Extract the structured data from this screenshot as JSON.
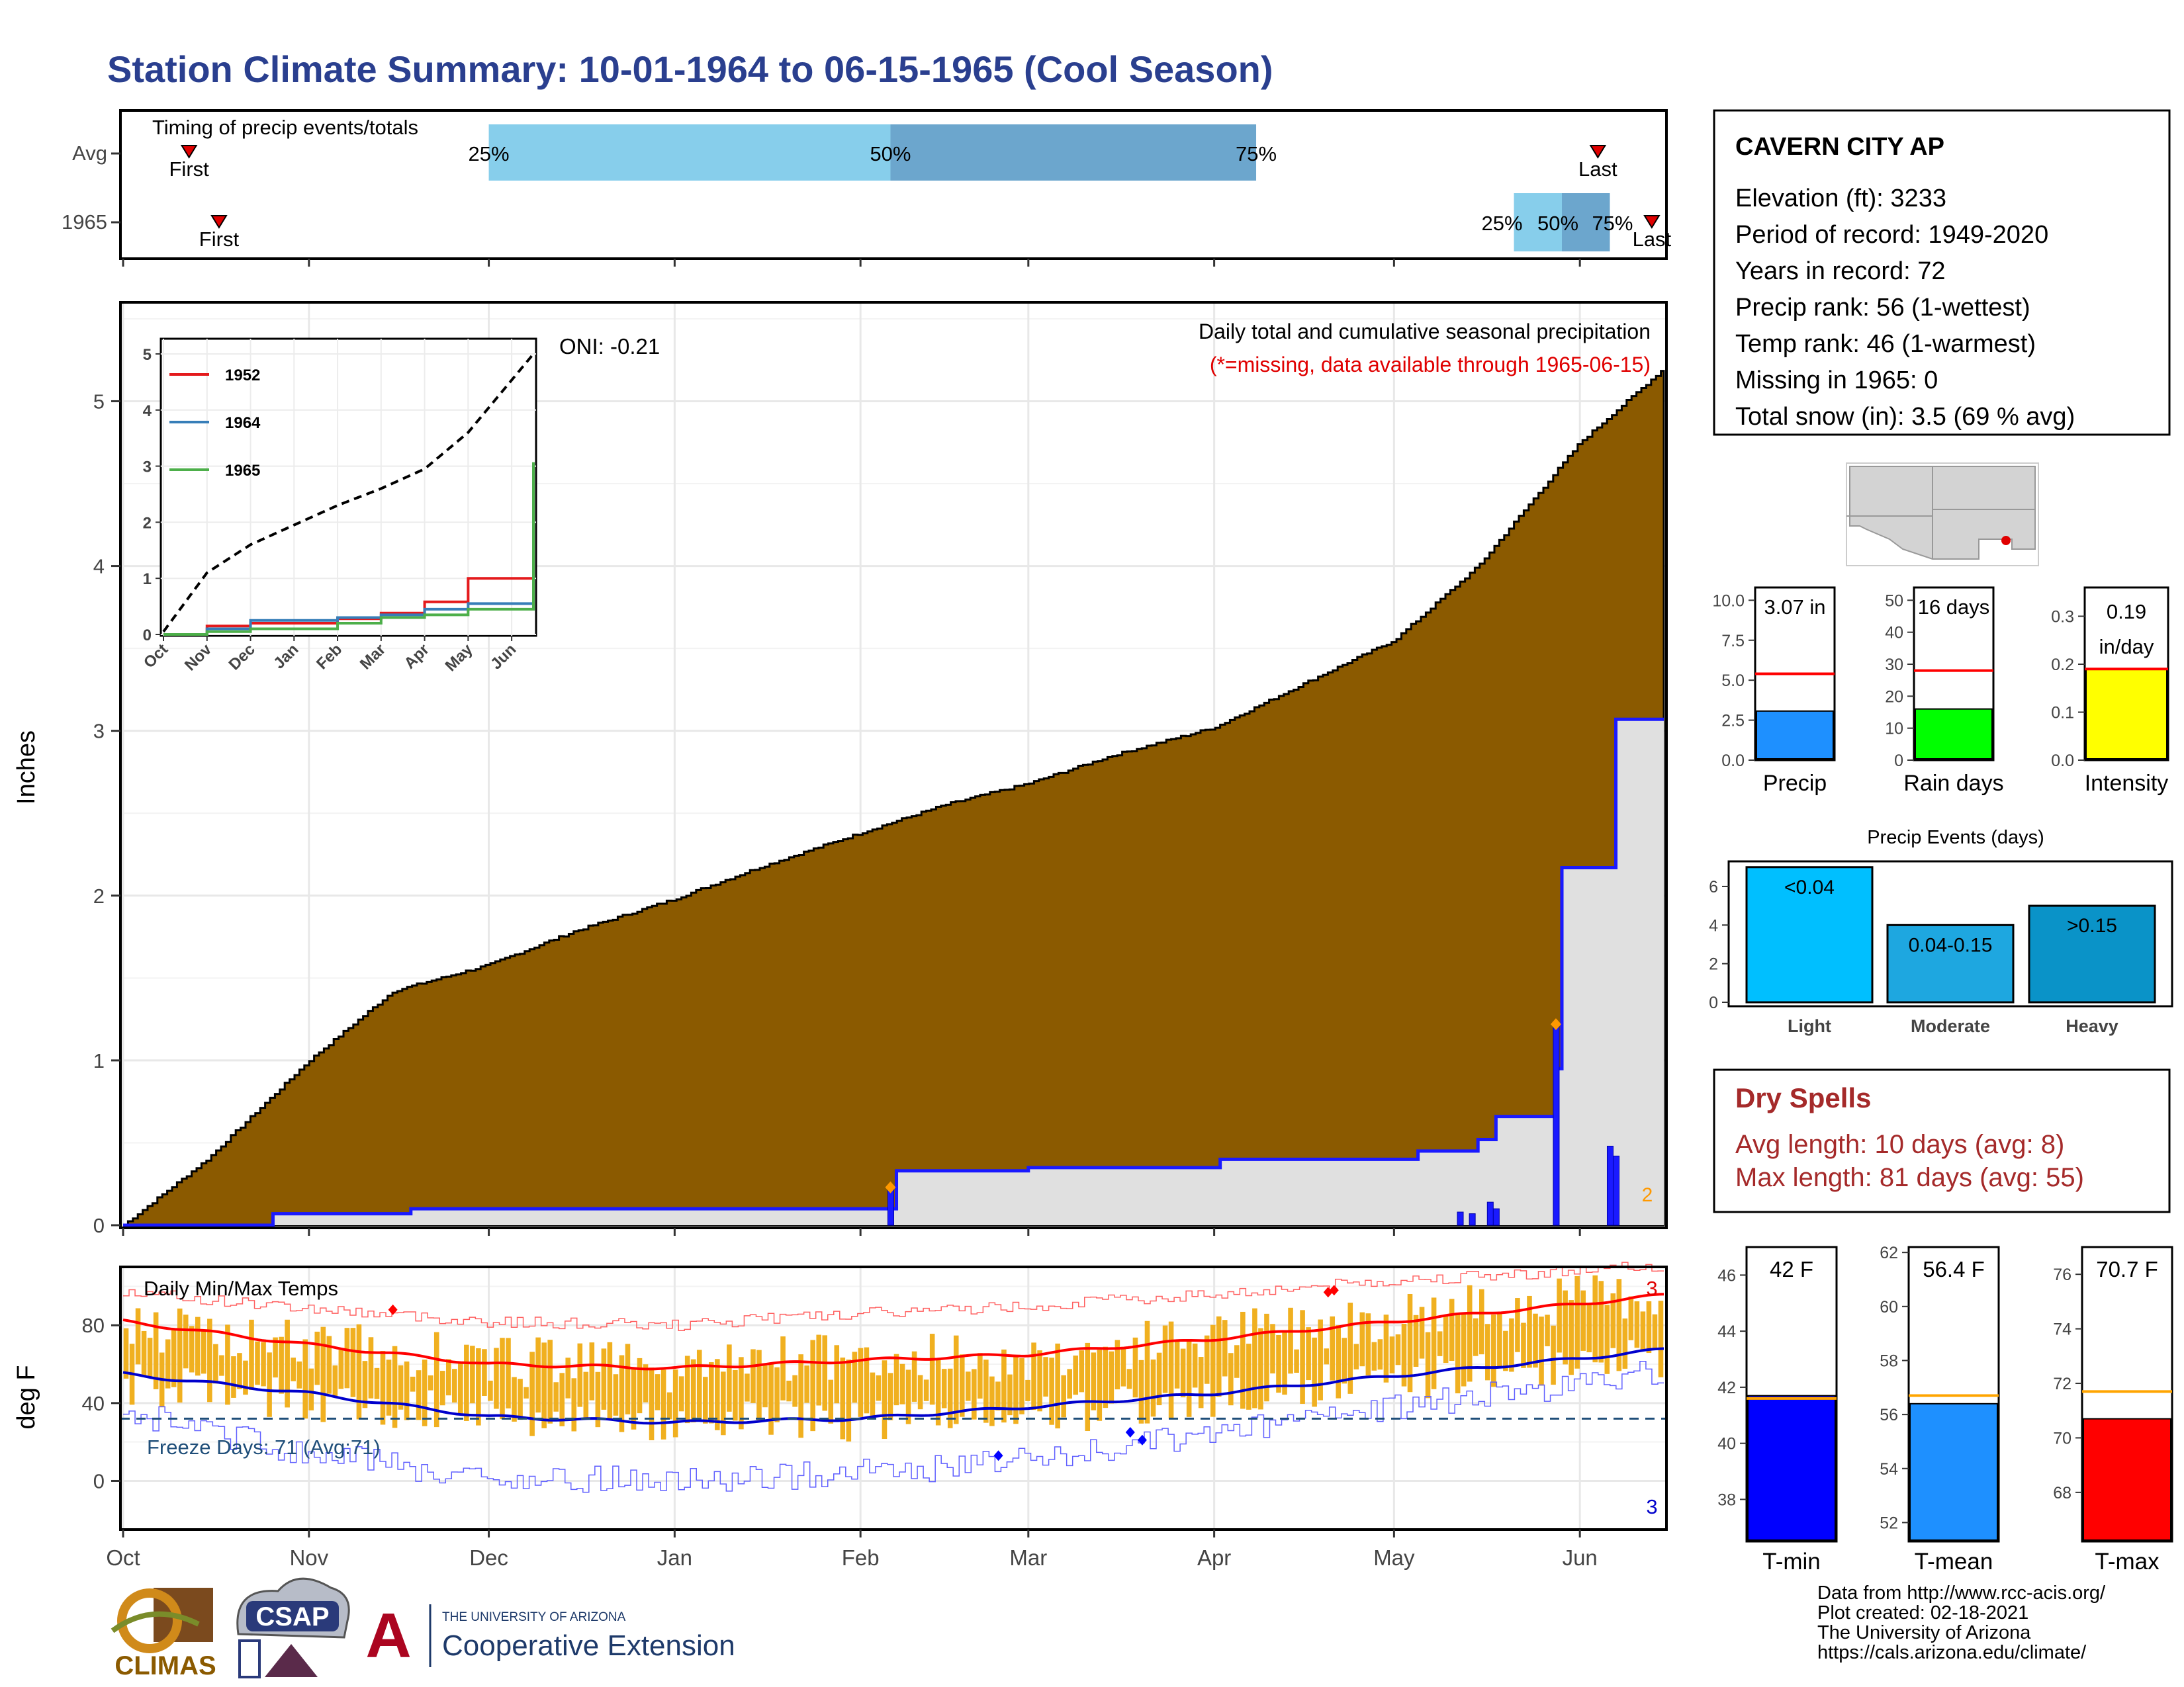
{
  "title": "Station Climate Summary: 10-01-1964 to 06-15-1965 (Cool Season)",
  "timing": {
    "label": "Timing of precip events/totals",
    "row_labels": [
      "Avg",
      "1965"
    ],
    "first_label": "First",
    "last_label": "Last",
    "pct_labels": [
      "25%",
      "50%",
      "75%"
    ],
    "avg": {
      "first": "1964-10-12",
      "p25": "1964-12-01",
      "p50": "1965-02-06",
      "p75": "1965-04-08",
      "last": "1965-06-04"
    },
    "season_1965": {
      "first": "1964-10-17",
      "p25": "1965-05-21",
      "p50": "1965-05-29",
      "p75": "1965-06-06",
      "last": "1965-06-13"
    }
  },
  "precip_panel": {
    "ylabel": "Inches",
    "oni": "ONI: -0.21",
    "subtitle": "Daily total and cumulative seasonal precipitation",
    "note": "(*=missing, data available through 1965-06-15)",
    "marker_label": "2",
    "yticks": [
      "0",
      "1",
      "2",
      "3",
      "4",
      "5"
    ]
  },
  "inset": {
    "legend": [
      {
        "name": "1952",
        "color": "#e41a1c"
      },
      {
        "name": "1964",
        "color": "#377eb8"
      },
      {
        "name": "1965",
        "color": "#4daf4a"
      }
    ],
    "xticks": [
      "Oct",
      "Nov",
      "Dec",
      "Jan",
      "Feb",
      "Mar",
      "Apr",
      "May",
      "Jun"
    ],
    "yticks": [
      "0",
      "1",
      "2",
      "3",
      "4",
      "5"
    ]
  },
  "temp_panel": {
    "ylabel": "deg F",
    "label": "Daily Min/Max Temps",
    "freeze": "Freeze Days: 71 (Avg:71)",
    "count_high": "3",
    "count_low": "3",
    "yticks": [
      "0",
      "40",
      "80"
    ]
  },
  "x_months": [
    "Oct",
    "Nov",
    "Dec",
    "Jan",
    "Feb",
    "Mar",
    "Apr",
    "May",
    "Jun"
  ],
  "station": {
    "name": "CAVERN CITY AP",
    "lines": [
      "Elevation (ft): 3233",
      "Period of record: 1949-2020",
      "Years in record: 72",
      "Precip rank: 56 (1-wettest)",
      "Temp rank: 46 (1-warmest)",
      "Missing in 1965: 0",
      "Total snow (in): 3.5 (69 % avg)"
    ]
  },
  "summary_bars": [
    {
      "label": "Precip",
      "value_text": "3.07 in",
      "value": 3.07,
      "avg": 5.4,
      "ymax": 10.8,
      "ticks": [
        "0.0",
        "2.5",
        "5.0",
        "7.5",
        "10.0"
      ],
      "tick_vals": [
        0,
        2.5,
        5,
        7.5,
        10
      ],
      "color": "#1e90ff"
    },
    {
      "label": "Rain days",
      "value_text": "16 days",
      "value": 16,
      "avg": 28,
      "ymax": 54,
      "ticks": [
        "0",
        "10",
        "20",
        "30",
        "40",
        "50"
      ],
      "tick_vals": [
        0,
        10,
        20,
        30,
        40,
        50
      ],
      "color": "#00ff00"
    },
    {
      "label": "Intensity",
      "value_text": "0.19",
      "value_text2": "in/day",
      "value": 0.19,
      "avg": 0.19,
      "ymax": 0.36,
      "ticks": [
        "0.0",
        "0.1",
        "0.2",
        "0.3"
      ],
      "tick_vals": [
        0,
        0.1,
        0.2,
        0.3
      ],
      "color": "#ffff00"
    }
  ],
  "events": {
    "title": "Precip Events (days)",
    "categories": [
      "Light",
      "Moderate",
      "Heavy"
    ],
    "bar_labels": [
      "<0.04",
      "0.04-0.15",
      ">0.15"
    ],
    "values": [
      7,
      4,
      5
    ],
    "colors": [
      "#00bfff",
      "#1ea7e0",
      "#0a93c8"
    ],
    "ticks": [
      "0",
      "2",
      "4",
      "6"
    ]
  },
  "dry_spells": {
    "title": "Dry Spells",
    "avg": "Avg length: 10 days (avg: 8)",
    "max": "Max length: 81 days (avg: 55)"
  },
  "temp_bars": [
    {
      "label": "T-min",
      "value_text": "42 F",
      "value": 41.7,
      "avg": 41.6,
      "ymin": 36.5,
      "ymax": 47,
      "ticks": [
        "38",
        "40",
        "42",
        "44",
        "46"
      ],
      "tick_vals": [
        38,
        40,
        42,
        44,
        46
      ],
      "color": "#0000ff"
    },
    {
      "label": "T-mean",
      "value_text": "56.4 F",
      "value": 56.4,
      "avg": 56.7,
      "ymin": 51.3,
      "ymax": 62.2,
      "ticks": [
        "52",
        "54",
        "56",
        "58",
        "60",
        "62"
      ],
      "tick_vals": [
        52,
        54,
        56,
        58,
        60,
        62
      ],
      "color": "#1e90ff"
    },
    {
      "label": "T-max",
      "value_text": "70.7 F",
      "value": 70.7,
      "avg": 71.7,
      "ymin": 66.2,
      "ymax": 77,
      "ticks": [
        "68",
        "70",
        "72",
        "74",
        "76"
      ],
      "tick_vals": [
        68,
        70,
        72,
        74,
        76
      ],
      "color": "#ff0000"
    }
  ],
  "footer": [
    "Data from http://www.rcc-acis.org/",
    "Plot created: 02-18-2021",
    "The University of Arizona",
    "https://cals.arizona.edu/climate/"
  ],
  "logos": {
    "climas": "CLIMAS",
    "csap": "CSAP",
    "uofa_small": "THE UNIVERSITY OF ARIZONA",
    "uofa_big": "Cooperative Extension",
    "uofa_letter": "A"
  },
  "chart_data": [
    {
      "type": "area",
      "title": "Daily total and cumulative seasonal precipitation",
      "ylabel": "Inches",
      "ylim": [
        0,
        5.6
      ],
      "x_range": [
        "1964-10-01",
        "1965-06-15"
      ],
      "series": [
        {
          "name": "Average cumulative",
          "x": [
            "1964-10-01",
            "1964-10-15",
            "1964-11-01",
            "1964-11-15",
            "1964-12-01",
            "1964-12-15",
            "1965-01-01",
            "1965-01-15",
            "1965-02-01",
            "1965-02-15",
            "1965-03-01",
            "1965-03-15",
            "1965-04-01",
            "1965-04-15",
            "1965-05-01",
            "1965-05-15",
            "1965-06-01",
            "1965-06-15"
          ],
          "values": [
            0,
            0.4,
            1.0,
            1.42,
            1.58,
            1.78,
            1.98,
            2.17,
            2.38,
            2.55,
            2.68,
            2.85,
            3.02,
            3.27,
            3.55,
            4.0,
            4.75,
            5.2
          ]
        },
        {
          "name": "1965 cumulative",
          "x": [
            "1964-10-01",
            "1964-10-25",
            "1964-10-26",
            "1964-11-18",
            "1965-02-06",
            "1965-02-07",
            "1965-03-01",
            "1965-04-02",
            "1965-05-01",
            "1965-05-05",
            "1965-05-15",
            "1965-05-18",
            "1965-05-28",
            "1965-05-29",
            "1965-06-06",
            "1965-06-07",
            "1965-06-15"
          ],
          "values": [
            0,
            0,
            0.07,
            0.1,
            0.1,
            0.33,
            0.35,
            0.4,
            0.4,
            0.45,
            0.52,
            0.66,
            0.95,
            2.17,
            2.17,
            3.07,
            3.07
          ]
        },
        {
          "name": "1965 daily",
          "x": [
            "1965-02-06",
            "1965-05-12",
            "1965-05-14",
            "1965-05-17",
            "1965-05-18",
            "1965-05-28",
            "1965-06-06",
            "1965-06-07"
          ],
          "values": [
            0.23,
            0.08,
            0.07,
            0.14,
            0.1,
            1.22,
            0.48,
            0.42
          ]
        }
      ]
    },
    {
      "type": "line",
      "title": "",
      "categories": [
        "Oct",
        "Nov",
        "Dec",
        "Jan",
        "Feb",
        "Mar",
        "Apr",
        "May",
        "Jun"
      ],
      "ylim": [
        0,
        5.2
      ],
      "series": [
        {
          "name": "Average",
          "values": [
            0.05,
            1.1,
            1.6,
            1.95,
            2.3,
            2.6,
            2.95,
            3.6,
            5.0
          ]
        },
        {
          "name": "1952",
          "values": [
            0,
            0.15,
            0.2,
            0.2,
            0.28,
            0.38,
            0.58,
            1.0,
            1.65
          ]
        },
        {
          "name": "1964",
          "values": [
            0,
            0.1,
            0.25,
            0.25,
            0.3,
            0.35,
            0.45,
            0.55,
            1.45
          ]
        },
        {
          "name": "1965",
          "values": [
            0,
            0.05,
            0.1,
            0.1,
            0.2,
            0.3,
            0.35,
            0.45,
            3.07
          ]
        }
      ]
    },
    {
      "type": "line",
      "title": "Daily Min/Max Temps",
      "ylabel": "deg F",
      "ylim": [
        -25,
        110
      ],
      "categories": [
        "Oct",
        "Nov",
        "Dec",
        "Jan",
        "Feb",
        "Mar",
        "Apr",
        "May",
        "Jun"
      ],
      "series": [
        {
          "name": "Avg max",
          "values": [
            82,
            70,
            60,
            58,
            62,
            65,
            73,
            82,
            91
          ]
        },
        {
          "name": "Avg min",
          "values": [
            55,
            45,
            33,
            30,
            32,
            38,
            45,
            54,
            63
          ]
        },
        {
          "name": "Record high",
          "values": [
            97,
            89,
            82,
            80,
            86,
            90,
            96,
            103,
            108
          ]
        },
        {
          "name": "Record low",
          "values": [
            36,
            14,
            2,
            0,
            4,
            10,
            25,
            38,
            50
          ]
        },
        {
          "name": "Daily max",
          "values": [
            80,
            70,
            62,
            58,
            64,
            63,
            74,
            85,
            93
          ]
        },
        {
          "name": "Daily min",
          "values": [
            50,
            42,
            33,
            30,
            31,
            33,
            44,
            52,
            60
          ]
        }
      ],
      "freeze_line": 32
    },
    {
      "type": "bar",
      "title": "",
      "categories": [
        "Precip"
      ],
      "values": [
        3.07
      ],
      "avg": 5.4,
      "ylim": [
        0,
        10.8
      ]
    },
    {
      "type": "bar",
      "title": "",
      "categories": [
        "Rain days"
      ],
      "values": [
        16
      ],
      "avg": 28,
      "ylim": [
        0,
        54
      ]
    },
    {
      "type": "bar",
      "title": "",
      "categories": [
        "Intensity"
      ],
      "values": [
        0.19
      ],
      "avg": 0.19,
      "ylim": [
        0,
        0.36
      ]
    },
    {
      "type": "bar",
      "title": "Precip Events (days)",
      "categories": [
        "Light",
        "Moderate",
        "Heavy"
      ],
      "values": [
        7,
        4,
        5
      ],
      "ylim": [
        0,
        7.3
      ]
    },
    {
      "type": "bar",
      "title": "",
      "categories": [
        "T-min"
      ],
      "values": [
        41.7
      ],
      "avg": 41.6,
      "ylim": [
        36.5,
        47
      ]
    },
    {
      "type": "bar",
      "title": "",
      "categories": [
        "T-mean"
      ],
      "values": [
        56.4
      ],
      "avg": 56.7,
      "ylim": [
        51.3,
        62.2
      ]
    },
    {
      "type": "bar",
      "title": "",
      "categories": [
        "T-max"
      ],
      "values": [
        70.7
      ],
      "avg": 71.7,
      "ylim": [
        66.2,
        77
      ]
    }
  ]
}
